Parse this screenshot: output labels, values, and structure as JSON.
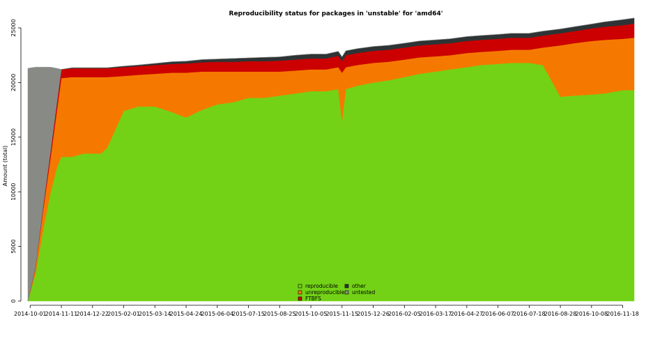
{
  "chart_data": {
    "type": "area",
    "title": "Reproducibility status for packages in 'unstable' for 'amd64'",
    "xlabel": "",
    "ylabel": "Amount (total)",
    "ylim": [
      0,
      25000
    ],
    "yticks": [
      0,
      5000,
      10000,
      15000,
      20000,
      25000
    ],
    "xticks": [
      "2014-10-01",
      "2014-11-11",
      "2014-12-22",
      "2015-02-01",
      "2015-03-14",
      "2015-04-24",
      "2015-06-04",
      "2015-07-15",
      "2015-08-25",
      "2015-10-05",
      "2015-11-15",
      "2015-12-26",
      "2016-02-05",
      "2016-03-17",
      "2016-04-27",
      "2016-06-07",
      "2016-07-18",
      "2016-08-28",
      "2016-10-08",
      "2016-11-18"
    ],
    "stacked": true,
    "legend_position": "bottom-center",
    "x": [
      "2014-09-28",
      "2014-10-08",
      "2014-10-18",
      "2014-10-28",
      "2014-11-05",
      "2014-11-11",
      "2014-11-25",
      "2014-12-10",
      "2014-12-22",
      "2015-01-02",
      "2015-01-10",
      "2015-02-01",
      "2015-02-20",
      "2015-03-14",
      "2015-04-05",
      "2015-04-24",
      "2015-05-15",
      "2015-06-04",
      "2015-06-25",
      "2015-07-15",
      "2015-08-05",
      "2015-08-25",
      "2015-09-15",
      "2015-10-05",
      "2015-10-25",
      "2015-11-10",
      "2015-11-15",
      "2015-11-20",
      "2015-12-05",
      "2015-12-26",
      "2016-01-15",
      "2016-02-05",
      "2016-02-25",
      "2016-03-17",
      "2016-04-05",
      "2016-04-27",
      "2016-05-15",
      "2016-06-07",
      "2016-06-25",
      "2016-07-18",
      "2016-08-05",
      "2016-08-28",
      "2016-09-15",
      "2016-10-08",
      "2016-10-25",
      "2016-11-18",
      "2016-12-03"
    ],
    "series": [
      {
        "name": "reproducible",
        "color": "#73d216",
        "values": [
          0,
          2500,
          6500,
          10000,
          12200,
          13200,
          13200,
          13500,
          13500,
          13500,
          14000,
          17400,
          17800,
          17800,
          17300,
          16800,
          17500,
          18000,
          18200,
          18600,
          18600,
          18800,
          19000,
          19200,
          19200,
          19400,
          16500,
          19400,
          19700,
          20000,
          20200,
          20500,
          20800,
          21000,
          21200,
          21400,
          21600,
          21700,
          21800,
          21800,
          21600,
          18700,
          18800,
          18900,
          19000,
          19300,
          19300
        ]
      },
      {
        "name": "unreproducible",
        "color": "#f57900",
        "values": [
          0,
          500,
          1800,
          3200,
          5200,
          7200,
          7300,
          7000,
          7000,
          7000,
          6500,
          3200,
          2900,
          3000,
          3600,
          4100,
          3500,
          3000,
          2800,
          2400,
          2400,
          2200,
          2100,
          2000,
          2000,
          2000,
          4400,
          2000,
          1900,
          1800,
          1700,
          1600,
          1500,
          1400,
          1300,
          1300,
          1200,
          1200,
          1200,
          1200,
          1600,
          4700,
          4800,
          4900,
          4900,
          4700,
          4800
        ]
      },
      {
        "name": "FTBFS",
        "color": "#cc0000",
        "values": [
          0,
          100,
          300,
          600,
          700,
          800,
          800,
          800,
          800,
          800,
          800,
          800,
          800,
          800,
          800,
          850,
          850,
          900,
          900,
          950,
          950,
          1000,
          1000,
          1000,
          1000,
          1050,
          1050,
          1100,
          1100,
          1100,
          1100,
          1100,
          1100,
          1100,
          1100,
          1100,
          1100,
          1100,
          1100,
          1100,
          1100,
          1100,
          1100,
          1150,
          1200,
          1250,
          1300
        ]
      },
      {
        "name": "other",
        "color": "#2e3436",
        "values": [
          0,
          0,
          0,
          0,
          0,
          0,
          50,
          50,
          50,
          50,
          50,
          100,
          100,
          150,
          200,
          200,
          250,
          250,
          300,
          300,
          350,
          350,
          400,
          400,
          400,
          400,
          400,
          400,
          400,
          400,
          400,
          400,
          400,
          400,
          400,
          400,
          400,
          400,
          400,
          400,
          400,
          400,
          400,
          400,
          450,
          500,
          500
        ]
      },
      {
        "name": "untested",
        "color": "#888a85",
        "values": [
          21300,
          18300,
          12800,
          7600,
          3200,
          0,
          0,
          0,
          0,
          0,
          0,
          0,
          0,
          0,
          0,
          0,
          0,
          0,
          0,
          0,
          0,
          0,
          0,
          0,
          0,
          0,
          0,
          0,
          0,
          0,
          0,
          0,
          0,
          0,
          0,
          0,
          0,
          0,
          0,
          0,
          0,
          0,
          0,
          0,
          0,
          0,
          0
        ]
      }
    ],
    "legend": [
      {
        "name": "reproducible",
        "color": "#73d216"
      },
      {
        "name": "other",
        "color": "#2e3436"
      },
      {
        "name": "unreproducible",
        "color": "#f57900"
      },
      {
        "name": "untested",
        "color": "#888a85"
      },
      {
        "name": "FTBFS",
        "color": "#cc0000"
      }
    ]
  }
}
